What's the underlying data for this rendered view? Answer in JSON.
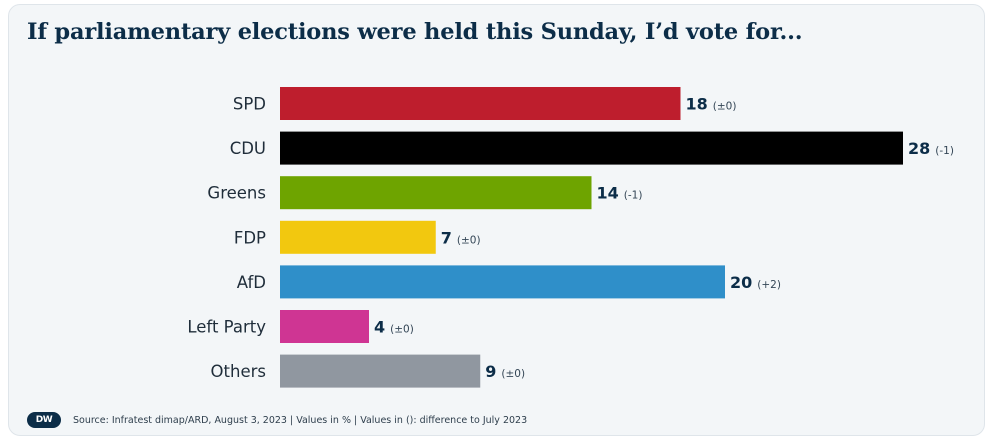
{
  "title": "If parliamentary elections were held this Sunday, I’d vote for...",
  "footer": {
    "logo": "DW",
    "source": "Source: Infratest dimap/ARD, August 3, 2023 | Values in % | Values in (): difference to July 2023"
  },
  "chart_data": {
    "type": "bar",
    "orientation": "horizontal",
    "title": "If parliamentary elections were held this Sunday, I’d vote for...",
    "categories": [
      "SPD",
      "CDU",
      "Greens",
      "FDP",
      "AfD",
      "Left Party",
      "Others"
    ],
    "values": [
      18,
      28,
      14,
      7,
      20,
      4,
      9
    ],
    "changes": [
      "(±0)",
      "(-1)",
      "(-1)",
      "(±0)",
      "(+2)",
      "(±0)",
      "(±0)"
    ],
    "colors": [
      "#be1e2d",
      "#000000",
      "#6ea400",
      "#f2c80f",
      "#2f8fc9",
      "#cf3593",
      "#9097a0"
    ],
    "xlim": [
      0,
      28
    ],
    "grid": false,
    "legend": "none"
  }
}
